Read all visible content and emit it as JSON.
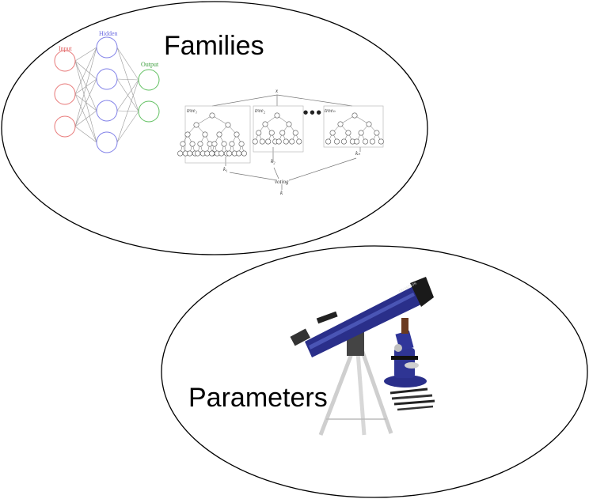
{
  "diagram": {
    "families": {
      "label": "Families",
      "neural_network": {
        "input_label": "Input",
        "hidden_label": "Hidden",
        "output_label": "Output",
        "input_count": 3,
        "hidden_count": 4,
        "output_count": 2,
        "colors": {
          "input": "#e87878",
          "hidden": "#8080e8",
          "output": "#60c060"
        }
      },
      "random_forest": {
        "input_label": "x",
        "tree_labels": [
          "tree₁",
          "tree₂",
          "treeₙ"
        ],
        "output_labels": [
          "k₁",
          "k₂",
          "kₙ"
        ],
        "voting_label": "voting",
        "result_label": "k",
        "ellipsis": "● ● ●"
      }
    },
    "parameters": {
      "label": "Parameters",
      "image_icons": [
        "telescope-icon",
        "microscope-icon"
      ],
      "colors": {
        "instrument": "#2a2f8a",
        "metal": "#d0d0d0"
      }
    }
  }
}
